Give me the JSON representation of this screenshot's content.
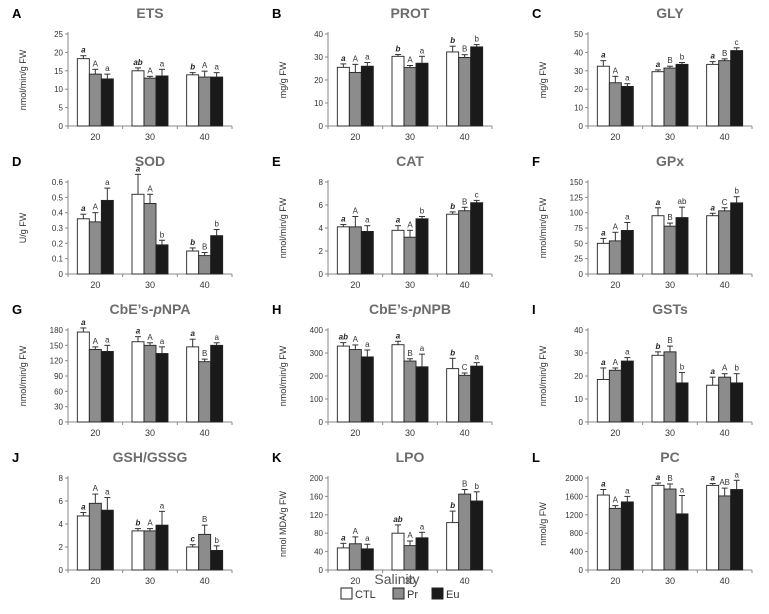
{
  "chart_data": {
    "type": "bar",
    "xlabel": "Salinity",
    "categories": [
      "20",
      "30",
      "40"
    ],
    "series_names": [
      "CTL",
      "Pr",
      "Eu"
    ],
    "series_colors": [
      "#ffffff",
      "#8c8c8c",
      "#1a1a1a"
    ],
    "panels": [
      {
        "letter": "A",
        "title": "ETS",
        "title_italic": "",
        "title_suffix": "",
        "ylabel": "nmol/min/g FW",
        "ylim": [
          0,
          25
        ],
        "yticks": [
          0,
          5,
          10,
          15,
          20,
          25
        ],
        "values": [
          [
            18.3,
            14.1,
            12.8
          ],
          [
            15.0,
            13.0,
            13.6
          ],
          [
            13.9,
            13.3,
            13.3
          ]
        ],
        "errors": [
          [
            0.8,
            1.3,
            1.3
          ],
          [
            0.8,
            0.5,
            1.8
          ],
          [
            0.6,
            1.6,
            1.2
          ]
        ],
        "labels": [
          [
            "a",
            "A",
            "a"
          ],
          [
            "ab",
            "A",
            "a"
          ],
          [
            "b",
            "A",
            "a"
          ]
        ]
      },
      {
        "letter": "B",
        "title": "PROT",
        "title_italic": "",
        "title_suffix": "",
        "ylabel": "mg/g FW",
        "ylim": [
          0,
          40
        ],
        "yticks": [
          0,
          10,
          20,
          30,
          40
        ],
        "values": [
          [
            25.5,
            23.3,
            26.0
          ],
          [
            30.3,
            25.4,
            27.3
          ],
          [
            32.2,
            29.8,
            34.4
          ]
        ],
        "errors": [
          [
            1.5,
            3.5,
            1.6
          ],
          [
            0.8,
            0.9,
            3.0
          ],
          [
            2.5,
            1.2,
            1.0
          ]
        ],
        "labels": [
          [
            "a",
            "A",
            "a"
          ],
          [
            "b",
            "A",
            "a"
          ],
          [
            "b",
            "B",
            "b"
          ]
        ]
      },
      {
        "letter": "C",
        "title": "GLY",
        "title_italic": "",
        "title_suffix": "",
        "ylabel": "mg/g FW",
        "ylim": [
          0,
          50
        ],
        "yticks": [
          0,
          10,
          20,
          30,
          40,
          50
        ],
        "values": [
          [
            32.5,
            23.5,
            21.5
          ],
          [
            29.5,
            31.5,
            33.5
          ],
          [
            33.5,
            35.5,
            41.0
          ]
        ],
        "errors": [
          [
            3.0,
            3.5,
            1.5
          ],
          [
            1.0,
            1.0,
            1.0
          ],
          [
            1.5,
            1.0,
            1.5
          ]
        ],
        "labels": [
          [
            "a",
            "A",
            "a"
          ],
          [
            "a",
            "B",
            "b"
          ],
          [
            "a",
            "B",
            "c"
          ]
        ]
      },
      {
        "letter": "D",
        "title": "SOD",
        "title_italic": "",
        "title_suffix": "",
        "ylabel": "U/g FW",
        "ylim": [
          0,
          0.6
        ],
        "yticks": [
          0,
          0.1,
          0.2,
          0.3,
          0.4,
          0.5,
          0.6
        ],
        "values": [
          [
            0.36,
            0.34,
            0.48
          ],
          [
            0.52,
            0.46,
            0.19
          ],
          [
            0.15,
            0.12,
            0.25
          ]
        ],
        "errors": [
          [
            0.03,
            0.06,
            0.08
          ],
          [
            0.13,
            0.06,
            0.03
          ],
          [
            0.02,
            0.02,
            0.04
          ]
        ],
        "labels": [
          [
            "a",
            "A",
            "a"
          ],
          [
            "a",
            "A",
            "b"
          ],
          [
            "b",
            "B",
            "b"
          ]
        ]
      },
      {
        "letter": "E",
        "title": "CAT",
        "title_italic": "",
        "title_suffix": "",
        "ylabel": "nmol/min/g FW",
        "ylim": [
          0,
          8
        ],
        "yticks": [
          0,
          2,
          4,
          6,
          8
        ],
        "values": [
          [
            4.1,
            4.1,
            3.7
          ],
          [
            3.8,
            3.2,
            4.8
          ],
          [
            5.2,
            5.5,
            6.2
          ]
        ],
        "errors": [
          [
            0.2,
            0.9,
            0.5
          ],
          [
            0.4,
            0.6,
            0.2
          ],
          [
            0.2,
            0.3,
            0.2
          ]
        ],
        "labels": [
          [
            "a",
            "A",
            "a"
          ],
          [
            "a",
            "A",
            "b"
          ],
          [
            "b",
            "B",
            "c"
          ]
        ]
      },
      {
        "letter": "F",
        "title": "GPx",
        "title_italic": "",
        "title_suffix": "",
        "ylabel": "nmol/min/g FW",
        "ylim": [
          0,
          150
        ],
        "yticks": [
          0,
          25,
          50,
          75,
          100,
          125,
          150
        ],
        "values": [
          [
            50,
            54,
            71
          ],
          [
            95,
            78,
            92
          ],
          [
            95,
            103,
            116
          ]
        ],
        "errors": [
          [
            8,
            14,
            13
          ],
          [
            13,
            5,
            17
          ],
          [
            4,
            5,
            10
          ]
        ],
        "labels": [
          [
            "a",
            "A",
            "a"
          ],
          [
            "a",
            "B",
            "ab"
          ],
          [
            "a",
            "C",
            "b"
          ]
        ]
      },
      {
        "letter": "G",
        "title": "CbE’s-",
        "title_italic": "p",
        "title_suffix": "NPA",
        "ylabel": "nmol/min/g FW",
        "ylim": [
          0,
          180
        ],
        "yticks": [
          0,
          30,
          60,
          90,
          120,
          150,
          180
        ],
        "values": [
          [
            176,
            142,
            138
          ],
          [
            157,
            150,
            134
          ],
          [
            147,
            118,
            150
          ]
        ],
        "errors": [
          [
            8,
            5,
            12
          ],
          [
            10,
            5,
            13
          ],
          [
            15,
            5,
            5
          ]
        ],
        "labels": [
          [
            "a",
            "A",
            "a"
          ],
          [
            "a",
            "A",
            "a"
          ],
          [
            "a",
            "B",
            "a"
          ]
        ]
      },
      {
        "letter": "H",
        "title": "CbE’s-",
        "title_italic": "p",
        "title_suffix": "NPB",
        "ylabel": "nmol/min/g FW",
        "ylim": [
          0,
          400
        ],
        "yticks": [
          0,
          100,
          200,
          300,
          400
        ],
        "values": [
          [
            330,
            315,
            283
          ],
          [
            336,
            265,
            240
          ],
          [
            232,
            203,
            243
          ]
        ],
        "errors": [
          [
            15,
            20,
            30
          ],
          [
            15,
            10,
            55
          ],
          [
            45,
            10,
            15
          ]
        ],
        "labels": [
          [
            "ab",
            "A",
            "a"
          ],
          [
            "a",
            "B",
            "a"
          ],
          [
            "b",
            "C",
            "a"
          ]
        ]
      },
      {
        "letter": "I",
        "title": "GSTs",
        "title_italic": "",
        "title_suffix": "",
        "ylabel": "nmol/min/g FW",
        "ylim": [
          0,
          40
        ],
        "yticks": [
          0,
          10,
          20,
          30,
          40
        ],
        "values": [
          [
            18.5,
            22.5,
            26.5
          ],
          [
            29.0,
            30.5,
            17.0
          ],
          [
            16.0,
            19.5,
            17.0
          ]
        ],
        "errors": [
          [
            5.0,
            1.0,
            1.5
          ],
          [
            1.5,
            2.5,
            4.5
          ],
          [
            3.5,
            1.5,
            4.0
          ]
        ],
        "labels": [
          [
            "a",
            "A",
            "a"
          ],
          [
            "b",
            "B",
            "b"
          ],
          [
            "a",
            "A",
            "b"
          ]
        ]
      },
      {
        "letter": "J",
        "title": "GSH/GSSG",
        "title_italic": "",
        "title_suffix": "",
        "ylabel": "",
        "ylim": [
          0,
          8
        ],
        "yticks": [
          0,
          2,
          4,
          6,
          8
        ],
        "values": [
          [
            4.7,
            5.8,
            5.2
          ],
          [
            3.4,
            3.4,
            3.9
          ],
          [
            2.0,
            3.1,
            1.7
          ]
        ],
        "errors": [
          [
            0.3,
            0.8,
            1.1
          ],
          [
            0.2,
            0.2,
            1.2
          ],
          [
            0.2,
            0.8,
            0.4
          ]
        ],
        "labels": [
          [
            "a",
            "A",
            "a"
          ],
          [
            "b",
            "A",
            "a"
          ],
          [
            "c",
            "B",
            "b"
          ]
        ]
      },
      {
        "letter": "K",
        "title": "LPO",
        "title_italic": "",
        "title_suffix": "",
        "ylabel": "nmol MDA/g FW",
        "ylim": [
          0,
          200
        ],
        "yticks": [
          0,
          40,
          80,
          120,
          160,
          200
        ],
        "values": [
          [
            48,
            57,
            46
          ],
          [
            80,
            53,
            70
          ],
          [
            103,
            165,
            150
          ]
        ],
        "errors": [
          [
            10,
            15,
            10
          ],
          [
            18,
            10,
            12
          ],
          [
            25,
            10,
            20
          ]
        ],
        "labels": [
          [
            "a",
            "A",
            "a"
          ],
          [
            "ab",
            "A",
            "a"
          ],
          [
            "b",
            "B",
            "b"
          ]
        ]
      },
      {
        "letter": "L",
        "title": "PC",
        "title_italic": "",
        "title_suffix": "",
        "ylabel": "nmol/g FW",
        "ylim": [
          0,
          2000
        ],
        "yticks": [
          0,
          400,
          800,
          1200,
          1600,
          2000
        ],
        "values": [
          [
            1630,
            1340,
            1480
          ],
          [
            1840,
            1760,
            1220
          ],
          [
            1840,
            1610,
            1750
          ]
        ],
        "errors": [
          [
            120,
            60,
            120
          ],
          [
            50,
            110,
            400
          ],
          [
            40,
            170,
            200
          ]
        ],
        "labels": [
          [
            "a",
            "A",
            "a"
          ],
          [
            "a",
            "B",
            "a"
          ],
          [
            "a",
            "AB",
            "a"
          ]
        ]
      }
    ]
  }
}
